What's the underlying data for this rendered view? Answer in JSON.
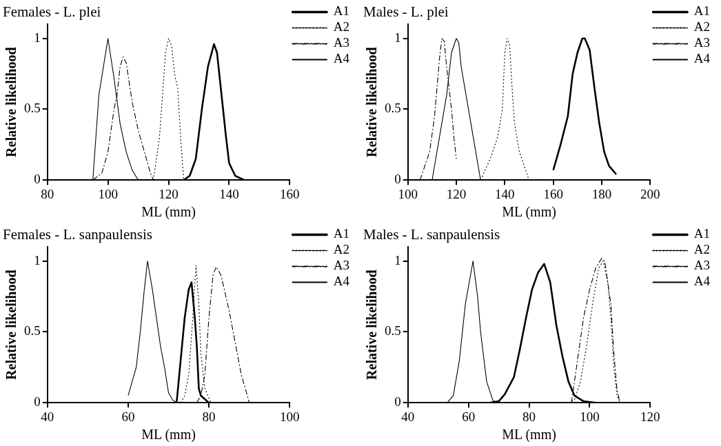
{
  "chart_data": [
    {
      "type": "line",
      "title": "Females - L. plei",
      "xlabel": "ML (mm)",
      "ylabel": "Relative likelihood",
      "xlim": [
        80,
        160
      ],
      "xticks": [
        80,
        100,
        120,
        140,
        160
      ],
      "ylim": [
        0,
        1.1
      ],
      "yticks": [
        0,
        0.5,
        1
      ],
      "grid": false,
      "legend": "top right",
      "marker": "none",
      "series": [
        {
          "name": "A1",
          "color": "#000000",
          "line_style": "solid",
          "x": [
            125,
            127,
            129,
            131,
            133,
            135,
            136,
            137,
            139,
            140,
            142,
            145
          ],
          "values": [
            0,
            0.03,
            0.15,
            0.5,
            0.8,
            0.96,
            0.9,
            0.7,
            0.3,
            0.12,
            0.03,
            0
          ]
        },
        {
          "name": "A2",
          "color": "#000000",
          "line_style": "dotted",
          "x": [
            115,
            117,
            118,
            119,
            120,
            121,
            122,
            123,
            124,
            125
          ],
          "values": [
            0,
            0.3,
            0.6,
            0.9,
            1,
            0.95,
            0.75,
            0.65,
            0.3,
            0
          ]
        },
        {
          "name": "A3",
          "color": "#000000",
          "line_style": "dashed",
          "x": [
            95,
            98,
            100,
            102,
            103,
            104,
            105,
            106,
            108,
            110,
            112,
            114,
            115
          ],
          "values": [
            0,
            0.05,
            0.2,
            0.5,
            0.6,
            0.8,
            0.87,
            0.83,
            0.55,
            0.35,
            0.2,
            0.05,
            0
          ]
        },
        {
          "name": "A4",
          "color": "#000000",
          "line_style": "solid",
          "x": [
            95,
            97,
            100,
            102,
            104,
            106,
            108,
            110
          ],
          "values": [
            0,
            0.6,
            1,
            0.72,
            0.4,
            0.2,
            0.07,
            0
          ]
        }
      ]
    },
    {
      "type": "line",
      "title": "Males - L. plei",
      "xlabel": "ML (mm)",
      "ylabel": "Relative likelihood",
      "xlim": [
        100,
        200
      ],
      "xticks": [
        100,
        120,
        140,
        160,
        180,
        200
      ],
      "ylim": [
        0,
        1.1
      ],
      "yticks": [
        0,
        0.5,
        1
      ],
      "grid": false,
      "legend": "top right",
      "marker": "none",
      "series": [
        {
          "name": "A1",
          "color": "#000000",
          "line_style": "solid",
          "x": [
            160,
            163,
            166,
            168,
            170,
            172,
            173,
            175,
            177,
            179,
            181,
            183,
            186
          ],
          "values": [
            0.07,
            0.25,
            0.45,
            0.75,
            0.9,
            1,
            1,
            0.92,
            0.65,
            0.4,
            0.2,
            0.1,
            0.04
          ]
        },
        {
          "name": "A2",
          "color": "#000000",
          "line_style": "dotted",
          "x": [
            130,
            134,
            137,
            139,
            140,
            141,
            142,
            143,
            144,
            146,
            150
          ],
          "values": [
            0,
            0.15,
            0.3,
            0.5,
            0.9,
            1,
            0.95,
            0.65,
            0.4,
            0.2,
            0
          ]
        },
        {
          "name": "A3",
          "color": "#000000",
          "line_style": "dashed",
          "x": [
            105,
            109,
            111,
            113,
            114,
            115,
            116,
            118,
            119,
            120
          ],
          "values": [
            0,
            0.2,
            0.45,
            0.85,
            1,
            0.98,
            0.8,
            0.5,
            0.3,
            0.15
          ]
        },
        {
          "name": "A4",
          "color": "#000000",
          "line_style": "solid",
          "x": [
            110,
            113,
            116,
            118,
            120,
            121,
            122,
            124,
            127,
            130
          ],
          "values": [
            0,
            0.3,
            0.6,
            0.9,
            1,
            0.97,
            0.8,
            0.6,
            0.3,
            0
          ]
        }
      ]
    },
    {
      "type": "line",
      "title": "Females - L. sanpaulensis",
      "xlabel": "ML (mm)",
      "ylabel": "Relative likelihood",
      "xlim": [
        40,
        100
      ],
      "xticks": [
        40,
        60,
        80,
        100
      ],
      "ylim": [
        0,
        1.1
      ],
      "yticks": [
        0,
        0.5,
        1
      ],
      "grid": false,
      "legend": "top right",
      "marker": "none",
      "series": [
        {
          "name": "A1",
          "color": "#000000",
          "line_style": "solid",
          "x": [
            72,
            73,
            74,
            75,
            75.7,
            76.5,
            77,
            77.5,
            78,
            80
          ],
          "values": [
            0,
            0.3,
            0.6,
            0.8,
            0.85,
            0.6,
            0.4,
            0.1,
            0.05,
            0
          ]
        },
        {
          "name": "A2",
          "color": "#000000",
          "line_style": "dotted",
          "x": [
            73,
            74,
            75,
            76,
            76.8,
            77.5,
            78,
            79,
            80.5
          ],
          "values": [
            0,
            0.05,
            0.2,
            0.6,
            0.97,
            0.7,
            0.35,
            0.1,
            0
          ]
        },
        {
          "name": "A3",
          "color": "#000000",
          "line_style": "dashed",
          "x": [
            77,
            78,
            79,
            80,
            81,
            81.8,
            83,
            85,
            87,
            88,
            90
          ],
          "values": [
            0,
            0.05,
            0.2,
            0.6,
            0.9,
            0.96,
            0.9,
            0.65,
            0.35,
            0.2,
            0
          ]
        },
        {
          "name": "A4",
          "color": "#000000",
          "line_style": "solid",
          "x": [
            60,
            62,
            63,
            64,
            64.8,
            66,
            67,
            68,
            69,
            70,
            71,
            72
          ],
          "values": [
            0.05,
            0.25,
            0.5,
            0.8,
            1,
            0.8,
            0.6,
            0.4,
            0.25,
            0.07,
            0.02,
            0
          ]
        }
      ]
    },
    {
      "type": "line",
      "title": "Males - L. sanpaulensis",
      "xlabel": "ML (mm)",
      "ylabel": "Relative likelihood",
      "xlim": [
        40,
        120
      ],
      "xticks": [
        40,
        60,
        80,
        100,
        120
      ],
      "ylim": [
        0,
        1.1
      ],
      "yticks": [
        0,
        0.5,
        1
      ],
      "grid": false,
      "legend": "top right",
      "marker": "none",
      "series": [
        {
          "name": "A1",
          "color": "#000000",
          "line_style": "solid",
          "x": [
            67,
            70,
            72,
            75,
            77,
            79,
            81,
            83,
            85,
            87,
            89,
            91,
            93,
            95,
            98,
            102
          ],
          "values": [
            0,
            0.01,
            0.06,
            0.18,
            0.38,
            0.6,
            0.8,
            0.92,
            0.98,
            0.85,
            0.55,
            0.33,
            0.15,
            0.05,
            0.01,
            0
          ]
        },
        {
          "name": "A2",
          "color": "#000000",
          "line_style": "dotted",
          "x": [
            93,
            95,
            97,
            99,
            101,
            103,
            104.5,
            106,
            107,
            108,
            109,
            110
          ],
          "values": [
            0,
            0.02,
            0.15,
            0.4,
            0.7,
            0.95,
            1,
            0.85,
            0.6,
            0.25,
            0.06,
            0
          ]
        },
        {
          "name": "A3",
          "color": "#000000",
          "line_style": "dashed",
          "x": [
            94,
            96,
            98,
            100,
            102,
            104,
            105,
            107,
            108,
            109,
            110
          ],
          "values": [
            0,
            0.3,
            0.6,
            0.8,
            0.95,
            1.02,
            1,
            0.7,
            0.35,
            0.1,
            0
          ]
        },
        {
          "name": "A4",
          "color": "#000000",
          "line_style": "solid",
          "x": [
            53,
            55,
            57,
            59,
            61.5,
            63,
            64,
            66,
            68,
            69
          ],
          "values": [
            0,
            0.05,
            0.3,
            0.7,
            1,
            0.75,
            0.5,
            0.15,
            0.02,
            0
          ]
        }
      ]
    }
  ]
}
